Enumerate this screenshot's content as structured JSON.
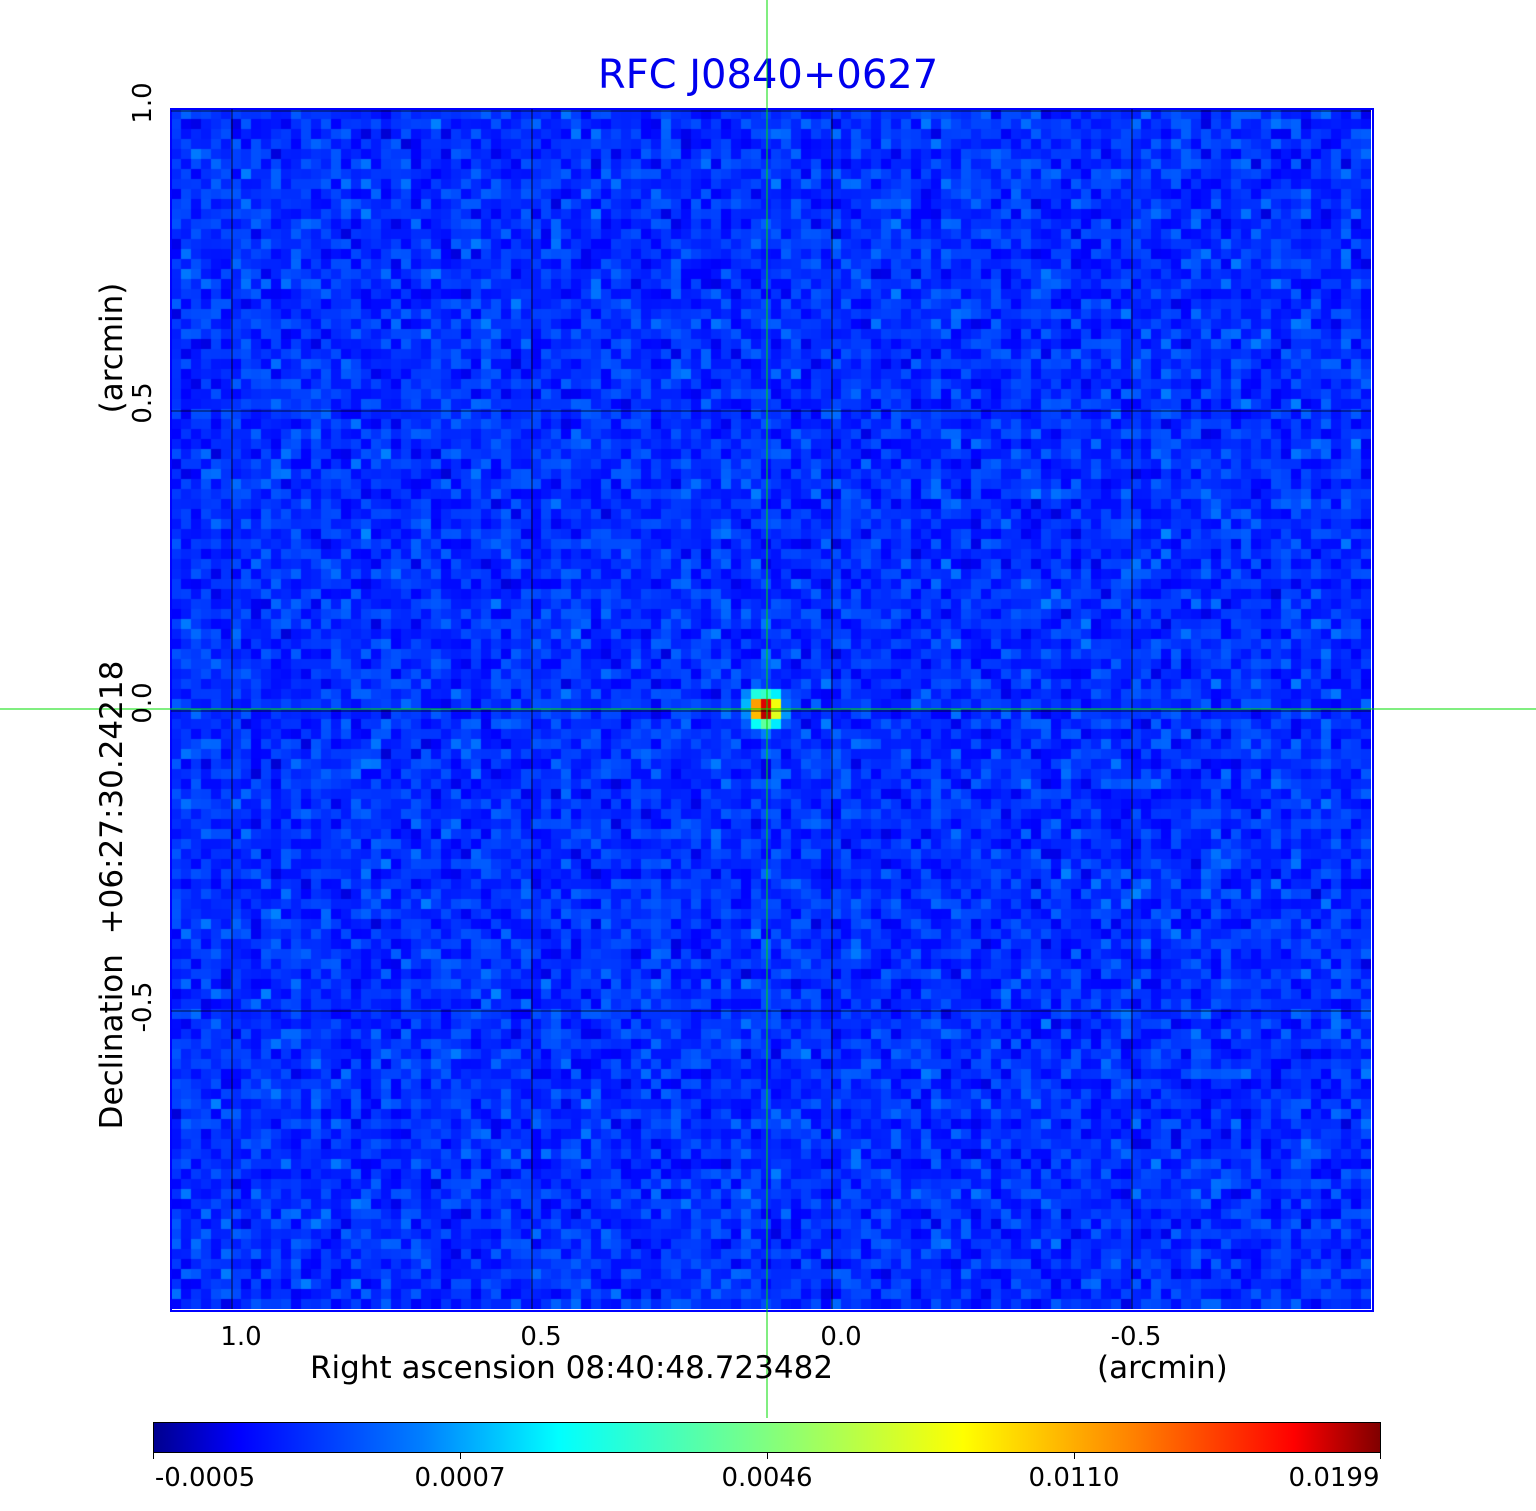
{
  "chart_data": {
    "type": "heatmap",
    "title": "RFC J0840+0627",
    "xlabel": "Right ascension  08:40:48.723482",
    "xunit": "(arcmin)",
    "ylabel": "Declination  +06:27:30.24218",
    "yunit": "(arcmin)",
    "xlim": [
      1.1,
      -0.9
    ],
    "ylim": [
      -1.0,
      1.0
    ],
    "xticks": [
      "1.0",
      "0.5",
      "0.0",
      "-0.5"
    ],
    "xtick_values": [
      1.0,
      0.5,
      0.0,
      -0.5
    ],
    "yticks": [
      "1.0",
      "0.5",
      "0.0",
      "-0.5"
    ],
    "ytick_values": [
      1.0,
      0.5,
      0.0,
      -0.5
    ],
    "grid": true,
    "colormap": "jet",
    "colorbar": {
      "ticks": [
        "-0.0005",
        "0.0007",
        "0.0046",
        "0.0110",
        "0.0199"
      ],
      "min": -0.0005,
      "max": 0.0199,
      "placement": "bottom"
    },
    "peak": {
      "ra_offset_arcmin": 0.11,
      "dec_offset_arcmin": 0.0,
      "value": 0.0199
    },
    "crosshair_color": "#00dd00",
    "frame_color": "#0000ff",
    "title_color": "#0000ee"
  }
}
